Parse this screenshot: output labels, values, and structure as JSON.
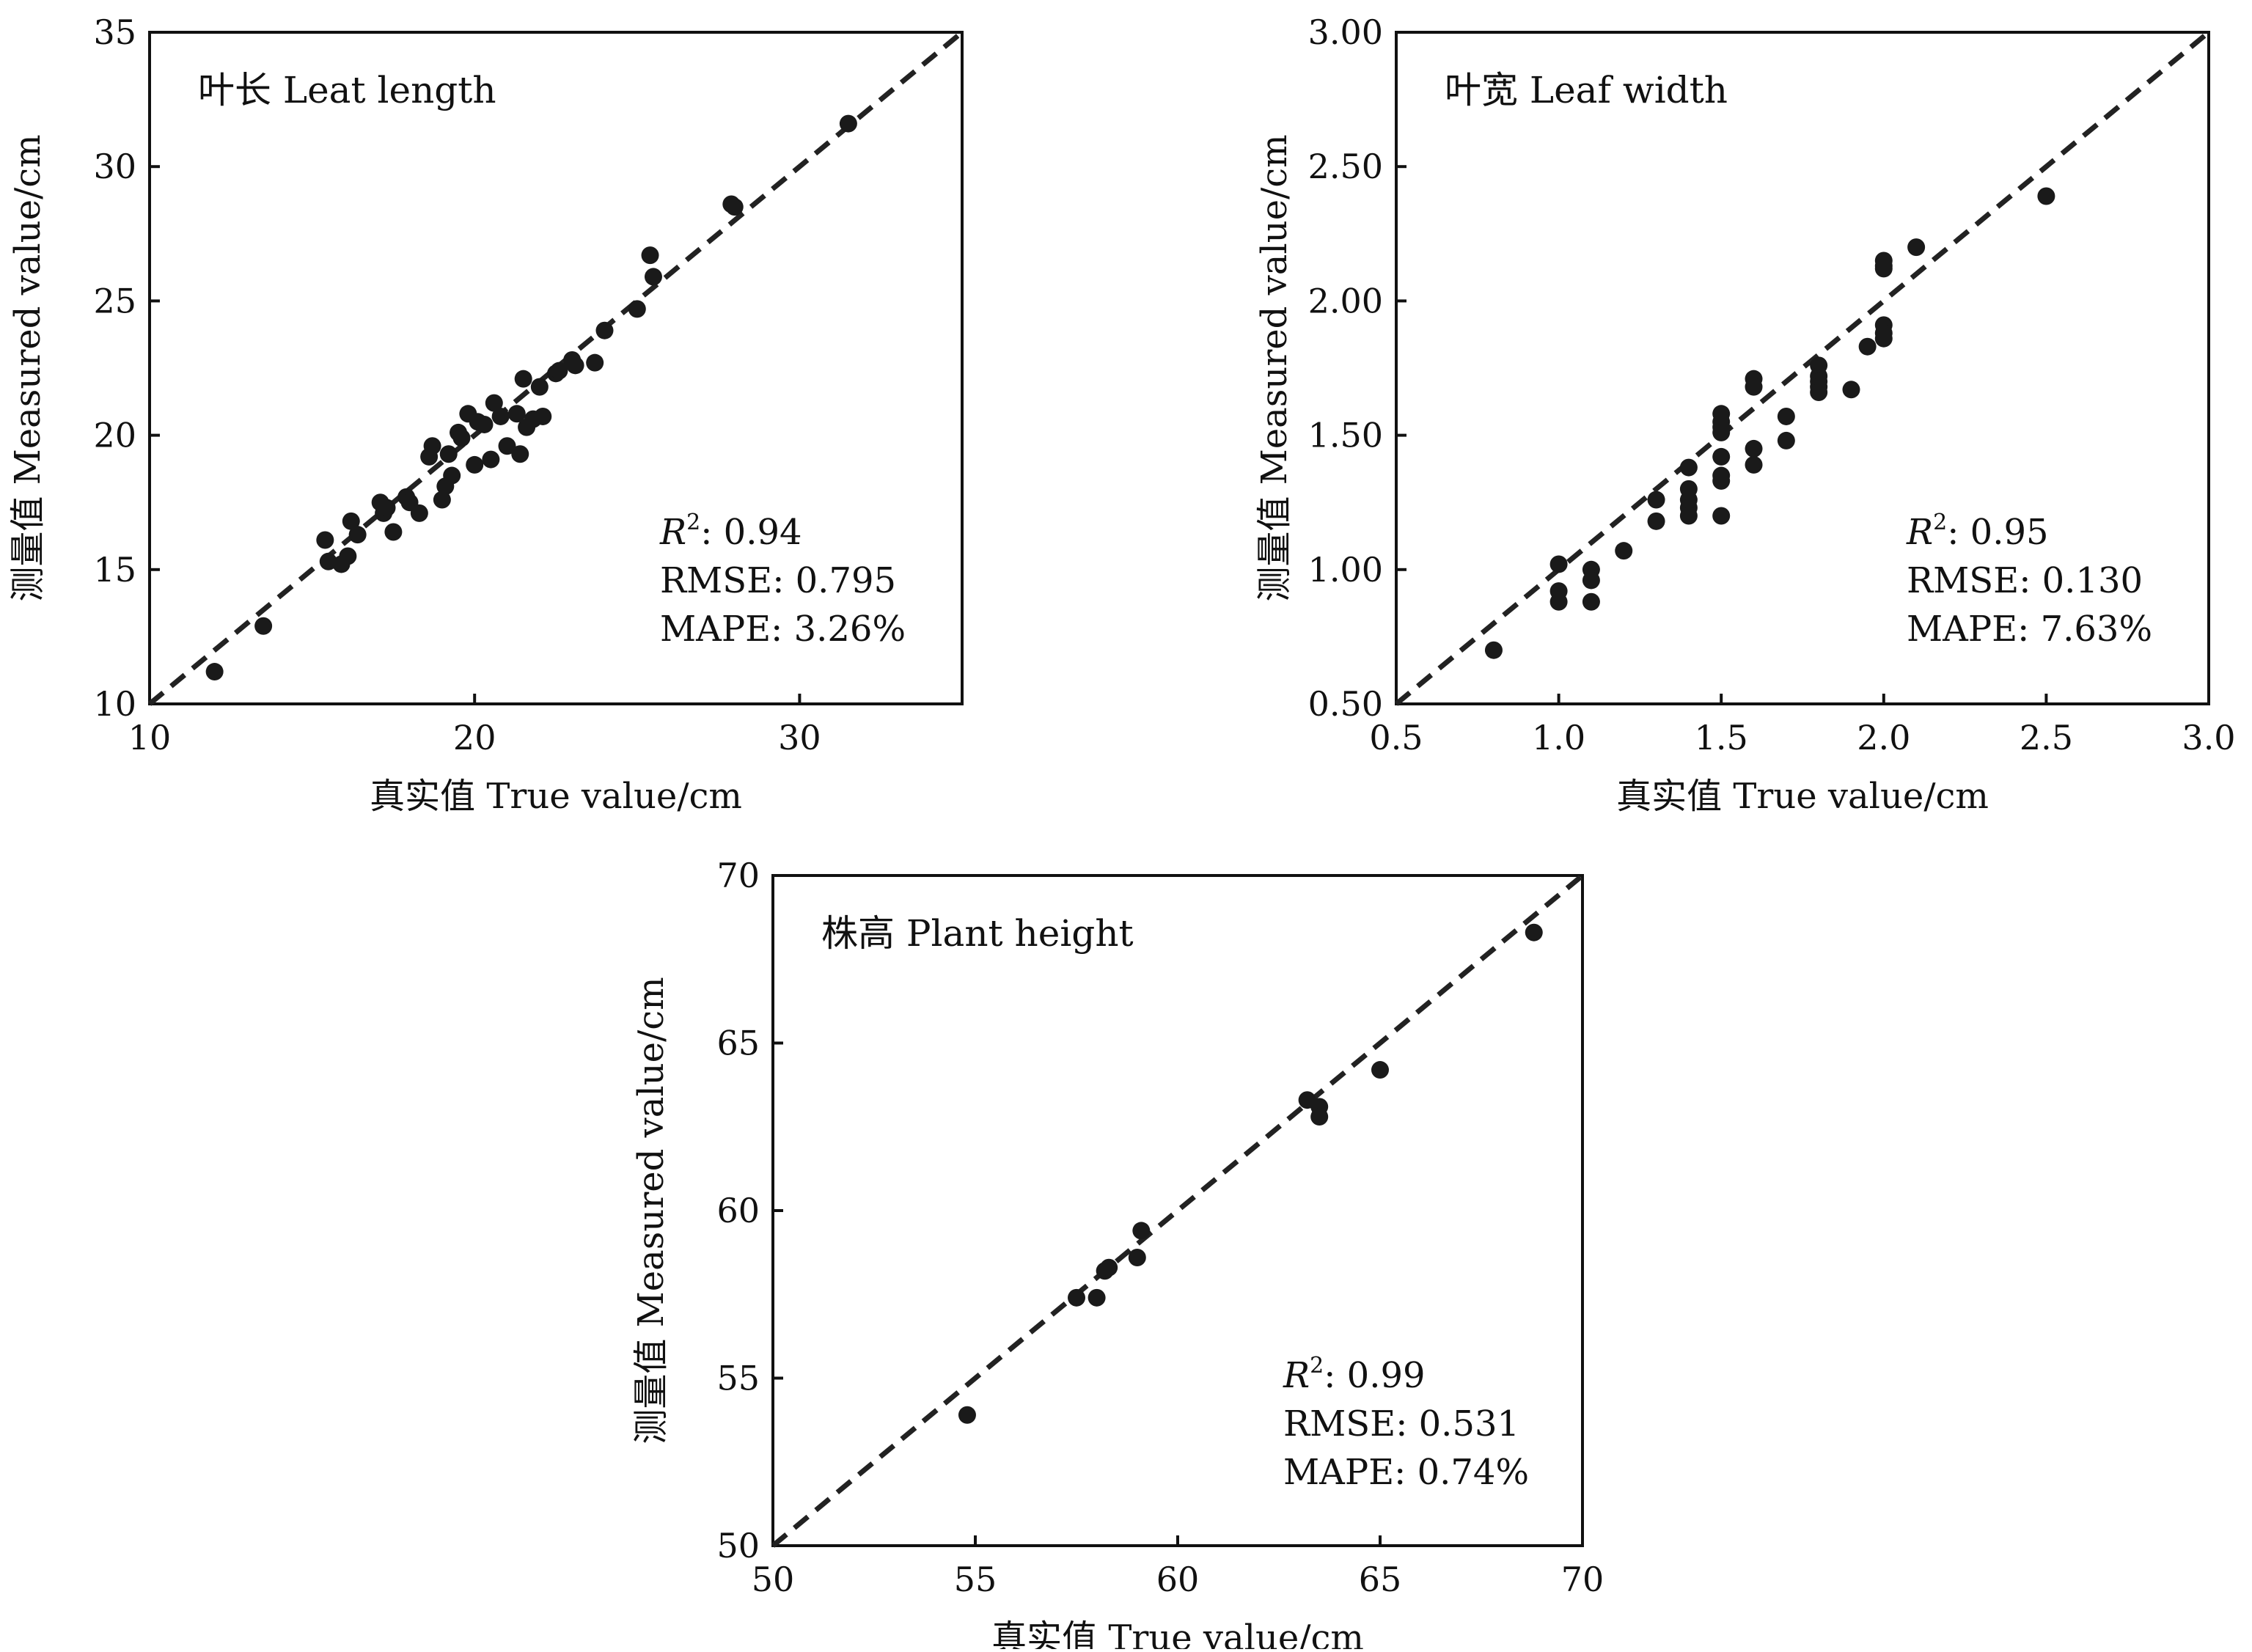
{
  "chart_data": [
    {
      "type": "scatter",
      "title": "叶长 Leat length",
      "xlabel": "真实值 True value/cm",
      "ylabel": "测量值 Measured value/cm",
      "xlim": [
        10,
        35
      ],
      "ylim": [
        10,
        35
      ],
      "xticks": [
        "10",
        "20",
        "30"
      ],
      "yticks": [
        "10",
        "15",
        "20",
        "25",
        "30",
        "35"
      ],
      "reference_line": "y = x",
      "stats": {
        "r2_symbol": "R",
        "r2_sup": "2",
        "r2": ": 0.94",
        "rmse": "RMSE: 0.795",
        "mape": "MAPE: 3.26%"
      },
      "x": [
        12.0,
        13.5,
        15.4,
        15.5,
        15.9,
        16.1,
        16.2,
        16.4,
        17.1,
        17.2,
        17.3,
        17.5,
        17.9,
        18.0,
        18.3,
        18.6,
        18.7,
        19.0,
        19.1,
        19.2,
        19.3,
        19.5,
        19.6,
        19.8,
        20.0,
        20.1,
        20.3,
        20.5,
        20.6,
        20.8,
        21.0,
        21.3,
        21.4,
        21.5,
        21.6,
        21.8,
        22.0,
        22.1,
        22.5,
        22.6,
        23.0,
        23.1,
        23.7,
        24.0,
        25.0,
        25.4,
        25.5,
        27.9,
        28.0,
        31.5
      ],
      "y": [
        11.2,
        12.9,
        16.1,
        15.3,
        15.2,
        15.5,
        16.8,
        16.3,
        17.5,
        17.1,
        17.3,
        16.4,
        17.7,
        17.5,
        17.1,
        19.2,
        19.6,
        17.6,
        18.1,
        19.3,
        18.5,
        20.1,
        19.9,
        20.8,
        18.9,
        20.5,
        20.4,
        19.1,
        21.2,
        20.7,
        19.6,
        20.8,
        19.3,
        22.1,
        20.3,
        20.6,
        21.8,
        20.7,
        22.3,
        22.4,
        22.8,
        22.6,
        22.7,
        23.9,
        24.7,
        26.7,
        25.9,
        28.6,
        28.5,
        31.6
      ]
    },
    {
      "type": "scatter",
      "title": "叶宽 Leaf width",
      "xlabel": "真实值 True value/cm",
      "ylabel": "测量值 Measured value/cm",
      "xlim": [
        0.5,
        3.0
      ],
      "ylim": [
        0.5,
        3.0
      ],
      "xticks": [
        "0.5",
        "1.0",
        "1.5",
        "2.0",
        "2.5",
        "3.0"
      ],
      "yticks": [
        "0.50",
        "1.00",
        "1.50",
        "2.00",
        "2.50",
        "3.00"
      ],
      "reference_line": "y = x",
      "stats": {
        "r2_symbol": "R",
        "r2_sup": "2",
        "r2": ": 0.95",
        "rmse": "RMSE: 0.130",
        "mape": "MAPE: 7.63%"
      },
      "x": [
        0.8,
        1.0,
        1.0,
        1.0,
        1.1,
        1.1,
        1.1,
        1.2,
        1.3,
        1.3,
        1.4,
        1.4,
        1.4,
        1.4,
        1.4,
        1.5,
        1.5,
        1.5,
        1.5,
        1.5,
        1.5,
        1.5,
        1.5,
        1.6,
        1.6,
        1.6,
        1.6,
        1.7,
        1.7,
        1.8,
        1.8,
        1.8,
        1.8,
        1.8,
        1.9,
        1.95,
        2.0,
        2.0,
        2.0,
        2.0,
        2.0,
        2.0,
        2.1,
        2.5
      ],
      "y": [
        0.7,
        1.02,
        0.92,
        0.88,
        1.0,
        0.96,
        0.88,
        1.07,
        1.26,
        1.18,
        1.38,
        1.3,
        1.26,
        1.23,
        1.2,
        1.58,
        1.55,
        1.53,
        1.51,
        1.42,
        1.35,
        1.33,
        1.2,
        1.71,
        1.68,
        1.45,
        1.39,
        1.57,
        1.48,
        1.76,
        1.72,
        1.7,
        1.68,
        1.66,
        1.67,
        1.83,
        2.15,
        2.13,
        2.12,
        1.91,
        1.88,
        1.86,
        2.2,
        2.39
      ]
    },
    {
      "type": "scatter",
      "title": "株高 Plant height",
      "xlabel": "真实值 True value/cm",
      "ylabel": "测量值 Measured value/cm",
      "xlim": [
        50,
        70
      ],
      "ylim": [
        50,
        70
      ],
      "xticks": [
        "50",
        "55",
        "60",
        "65",
        "70"
      ],
      "yticks": [
        "50",
        "55",
        "60",
        "65",
        "70"
      ],
      "reference_line": "y = x",
      "stats": {
        "r2_symbol": "R",
        "r2_sup": "2",
        "r2": ": 0.99",
        "rmse": "RMSE: 0.531",
        "mape": "MAPE: 0.74%"
      },
      "x": [
        54.8,
        57.5,
        58.0,
        58.2,
        58.3,
        59.0,
        59.1,
        63.2,
        63.5,
        63.5,
        65.0,
        68.8
      ],
      "y": [
        53.9,
        57.4,
        57.4,
        58.2,
        58.3,
        58.6,
        59.4,
        63.3,
        63.1,
        62.8,
        64.2,
        68.3
      ]
    }
  ]
}
